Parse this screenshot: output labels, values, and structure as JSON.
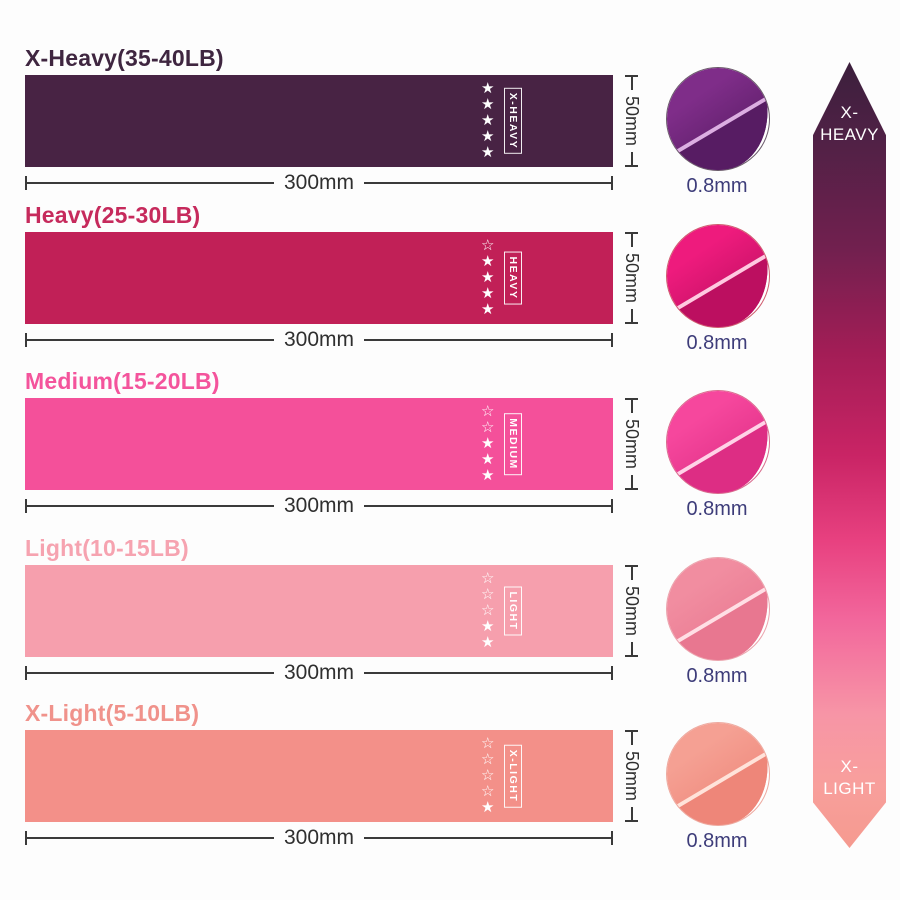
{
  "page": {
    "background": "#fdfdfd"
  },
  "bands": [
    {
      "title": "X-Heavy(35-40LB)",
      "grade_tag": "X-HEAVY",
      "stars_filled": 5,
      "stars_total": 5,
      "width_label": "300mm",
      "height_label": "50mm",
      "thickness_label": "0.8mm",
      "colors": {
        "band": "#482344",
        "title": "#3f2640",
        "chip_main": "#7f2d89",
        "chip_shade": "#571c63",
        "chip_crease": "#dcaee2",
        "chip_border": "#6a5a6a"
      }
    },
    {
      "title": "Heavy(25-30LB)",
      "grade_tag": "HEAVY",
      "stars_filled": 4,
      "stars_total": 5,
      "width_label": "300mm",
      "height_label": "50mm",
      "thickness_label": "0.8mm",
      "colors": {
        "band": "#c12057",
        "title": "#c62a5c",
        "chip_main": "#ee1b7d",
        "chip_shade": "#bc0f60",
        "chip_crease": "#ffc9e0",
        "chip_border": "#cf5c6e"
      }
    },
    {
      "title": "Medium(15-20LB)",
      "grade_tag": "MEDIUM",
      "stars_filled": 3,
      "stars_total": 5,
      "width_label": "300mm",
      "height_label": "50mm",
      "thickness_label": "0.8mm",
      "colors": {
        "band": "#f4509a",
        "title": "#f4549c",
        "chip_main": "#f6479d",
        "chip_shade": "#dd2d84",
        "chip_crease": "#ffd2e7",
        "chip_border": "#d96b8d"
      }
    },
    {
      "title": "Light(10-15LB)",
      "grade_tag": "LIGHT",
      "stars_filled": 2,
      "stars_total": 5,
      "width_label": "300mm",
      "height_label": "50mm",
      "thickness_label": "0.8mm",
      "colors": {
        "band": "#f69fad",
        "title": "#f6a3b0",
        "chip_main": "#f18da0",
        "chip_shade": "#e87790",
        "chip_crease": "#ffdfe5",
        "chip_border": "#eba4ad"
      }
    },
    {
      "title": "X-Light(5-10LB)",
      "grade_tag": "X-LIGHT",
      "stars_filled": 1,
      "stars_total": 5,
      "width_label": "300mm",
      "height_label": "50mm",
      "thickness_label": "0.8mm",
      "colors": {
        "band": "#f39089",
        "title": "#f0928b",
        "chip_main": "#f5a093",
        "chip_shade": "#ee8679",
        "chip_crease": "#ffe3da",
        "chip_border": "#edaaa0"
      }
    }
  ],
  "arrow": {
    "top_label_lines": [
      "X-",
      "HEAVY"
    ],
    "bottom_label_lines": [
      "X-",
      "LIGHT"
    ],
    "gradient_stops": [
      "#3b1f3c 0%",
      "#4e2145 9%",
      "#72204f 24%",
      "#a31d56 37%",
      "#c92465 50%",
      "#e84180 61%",
      "#f2679c 71%",
      "#f795a6 83%",
      "#f89f9c 92%",
      "#f59a8f 100%"
    ]
  },
  "text_colors": {
    "dimension": "#2f2f2f",
    "thickness": "#3e3d7a"
  }
}
